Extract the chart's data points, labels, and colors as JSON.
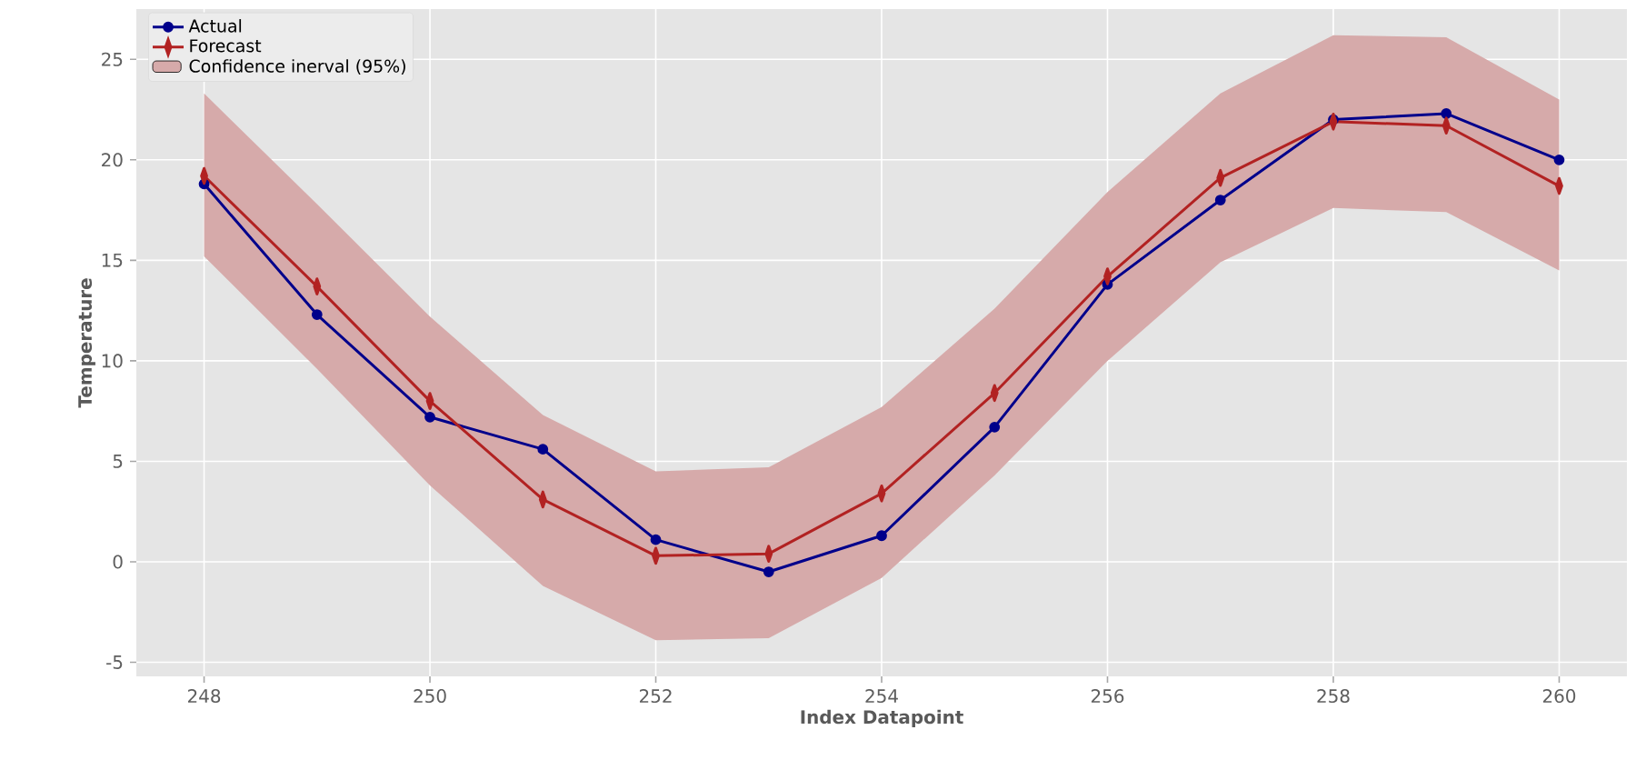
{
  "chart_data": {
    "type": "line",
    "xlabel": "Index Datapoint",
    "ylabel": "Temperature",
    "x": [
      248,
      249,
      250,
      251,
      252,
      253,
      254,
      255,
      256,
      257,
      258,
      259,
      260
    ],
    "series": [
      {
        "name": "Actual",
        "color": "#00008b",
        "marker": "circle",
        "values": [
          18.8,
          12.3,
          7.2,
          5.6,
          1.1,
          -0.5,
          1.3,
          6.7,
          13.8,
          18.0,
          22.0,
          22.3,
          20.0
        ]
      },
      {
        "name": "Forecast",
        "color": "#b22222",
        "marker": "diamond",
        "values": [
          19.2,
          13.7,
          8.0,
          3.1,
          0.3,
          0.4,
          3.4,
          8.4,
          14.2,
          19.1,
          21.9,
          21.7,
          18.7
        ]
      },
      {
        "name": "Confidence inerval (95%)",
        "type": "area",
        "color": "#d6aaaa",
        "values": [
          null,
          null,
          null,
          null,
          null,
          null,
          null,
          null,
          null,
          null,
          null,
          null,
          null
        ],
        "lower": [
          15.2,
          9.6,
          3.8,
          -1.2,
          -3.9,
          -3.8,
          -0.8,
          4.3,
          10.0,
          14.9,
          17.6,
          17.4,
          14.5
        ],
        "upper": [
          23.3,
          17.8,
          12.2,
          7.3,
          4.5,
          4.7,
          7.7,
          12.6,
          18.4,
          23.3,
          26.2,
          26.1,
          23.0
        ]
      }
    ],
    "xlim": [
      247.4,
      260.6
    ],
    "ylim": [
      -5.7,
      27.5
    ],
    "xticks": [
      248,
      250,
      252,
      254,
      256,
      258,
      260
    ],
    "yticks": [
      -5,
      0,
      5,
      10,
      15,
      20,
      25
    ],
    "grid": true,
    "legend": "top left",
    "line_style": "solid"
  }
}
